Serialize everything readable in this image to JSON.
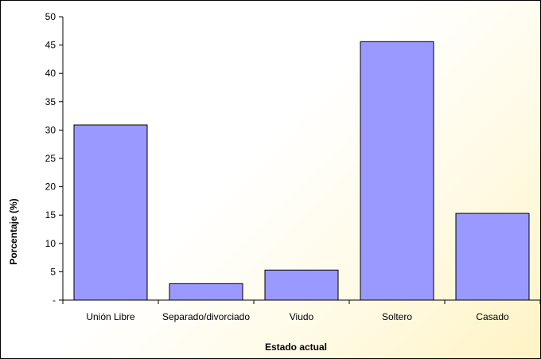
{
  "chart_data": {
    "type": "bar",
    "categories": [
      "Unión Libre",
      "Separado/divorciado",
      "Viudo",
      "Soltero",
      "Casado"
    ],
    "values": [
      30.9,
      2.9,
      5.3,
      45.6,
      15.3
    ],
    "xlabel": "Estado actual",
    "ylabel": "Porcentaje (%)",
    "ylim": [
      0,
      50
    ],
    "yticks": [
      "-",
      "5",
      "10",
      "15",
      "20",
      "25",
      "30",
      "35",
      "40",
      "45",
      "50"
    ],
    "bar_color": "#9999ff",
    "grid": false,
    "legend": "none"
  }
}
